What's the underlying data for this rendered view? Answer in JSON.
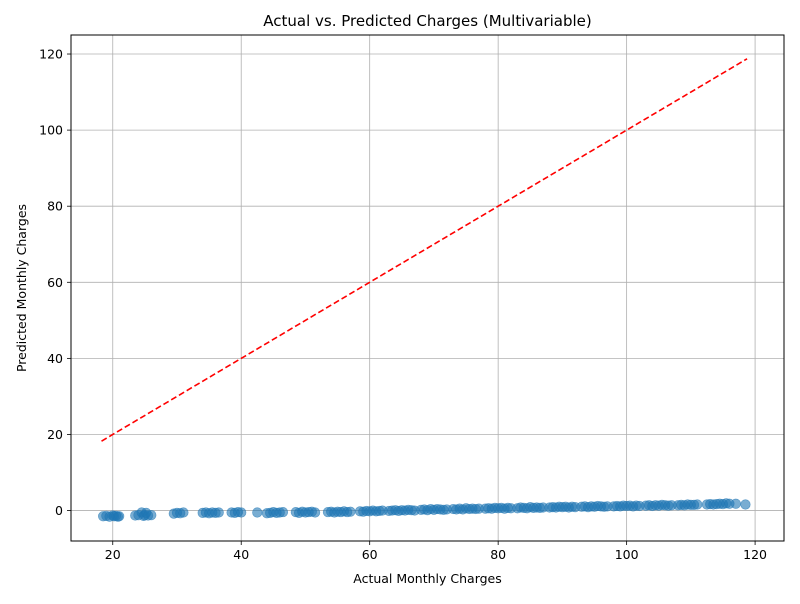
{
  "chart_data": {
    "type": "scatter",
    "title": "Actual vs. Predicted Charges (Multivariable)",
    "xlabel": "Actual Monthly Charges",
    "ylabel": "Predicted Monthly Charges",
    "xlim": [
      13.5,
      124.5
    ],
    "ylim": [
      -8,
      125
    ],
    "x_ticks": [
      20,
      40,
      60,
      80,
      100,
      120
    ],
    "y_ticks": [
      0,
      20,
      40,
      60,
      80,
      100,
      120
    ],
    "grid": true,
    "point_color": "#1f77b4",
    "point_alpha": 0.6,
    "reference_line": {
      "style": "dashed",
      "color": "#ff0000",
      "x": [
        18.25,
        118.75
      ],
      "y": [
        18.25,
        118.75
      ]
    },
    "points": {
      "x": [
        18.5,
        19,
        19.5,
        20,
        20.2,
        20.5,
        20.8,
        21,
        23.5,
        24,
        24.5,
        24.8,
        25,
        25.2,
        25.5,
        26,
        29.5,
        30,
        30.5,
        31,
        34,
        34.5,
        35,
        35.5,
        36,
        36.5,
        38.5,
        39,
        39.5,
        40,
        42.5,
        44,
        44.5,
        45,
        45.5,
        46,
        46.5,
        48.5,
        49,
        49.5,
        50,
        50.5,
        51,
        51.5,
        53.5,
        54,
        54.5,
        55,
        55.5,
        56,
        56.5,
        57,
        58.5,
        59,
        59.5,
        60,
        60.5,
        61,
        61.5,
        62,
        63,
        63.5,
        64,
        64.5,
        65,
        65.5,
        66,
        66.5,
        67,
        68,
        68.5,
        69,
        69.5,
        70,
        70.5,
        71,
        71.5,
        72,
        73,
        73.5,
        74,
        74.5,
        75,
        75.5,
        76,
        76.5,
        77,
        78,
        78.5,
        79,
        79.5,
        80,
        80.5,
        81,
        81.5,
        82,
        83,
        83.5,
        84,
        84.5,
        85,
        85.5,
        86,
        86.5,
        87,
        88,
        88.5,
        89,
        89.5,
        90,
        90.5,
        91,
        91.5,
        92,
        93,
        93.5,
        94,
        94.5,
        95,
        95.5,
        96,
        96.5,
        97,
        98,
        98.5,
        99,
        99.5,
        100,
        100.5,
        101,
        101.5,
        102,
        103,
        103.5,
        104,
        104.5,
        105,
        105.5,
        106,
        106.5,
        107,
        108,
        108.5,
        109,
        109.5,
        110,
        110.5,
        111,
        112.5,
        113,
        113.5,
        114,
        114.5,
        115,
        115.5,
        116,
        117,
        118.5
      ],
      "y": [
        -1.5,
        -1.4,
        -1.6,
        -1.3,
        -1.5,
        -1.4,
        -1.6,
        -1.5,
        -1.3,
        -1.2,
        -0.5,
        -1.4,
        -1.2,
        -0.6,
        -1.3,
        -1.2,
        -0.8,
        -0.6,
        -0.7,
        -0.5,
        -0.6,
        -0.5,
        -0.7,
        -0.5,
        -0.6,
        -0.5,
        -0.5,
        -0.6,
        -0.4,
        -0.5,
        -0.5,
        -0.7,
        -0.6,
        -0.4,
        -0.6,
        -0.5,
        -0.4,
        -0.4,
        -0.6,
        -0.3,
        -0.5,
        -0.4,
        -0.3,
        -0.5,
        -0.4,
        -0.3,
        -0.5,
        -0.3,
        -0.4,
        -0.2,
        -0.4,
        -0.3,
        -0.2,
        -0.3,
        -0.1,
        -0.2,
        0,
        -0.2,
        -0.1,
        0,
        -0.1,
        0,
        0.1,
        -0.1,
        0.1,
        0,
        0.2,
        0.1,
        0,
        0.2,
        0.3,
        0.1,
        0.4,
        0.2,
        0.4,
        0.3,
        0.2,
        0.3,
        0.4,
        0.3,
        0.5,
        0.3,
        0.6,
        0.4,
        0.5,
        0.4,
        0.5,
        0.5,
        0.6,
        0.5,
        0.7,
        0.6,
        0.7,
        0.5,
        0.7,
        0.6,
        0.6,
        0.8,
        0.7,
        0.6,
        0.9,
        0.7,
        0.8,
        0.7,
        0.8,
        0.8,
        0.9,
        0.8,
        1.0,
        0.9,
        1.0,
        0.8,
        1.0,
        0.9,
        1.0,
        1.1,
        0.9,
        1.1,
        1.0,
        1.2,
        1.1,
        1.0,
        1.1,
        1.1,
        1.2,
        1.1,
        1.3,
        1.2,
        1.3,
        1.1,
        1.3,
        1.2,
        1.3,
        1.4,
        1.2,
        1.4,
        1.3,
        1.5,
        1.4,
        1.3,
        1.4,
        1.4,
        1.5,
        1.4,
        1.6,
        1.5,
        1.5,
        1.6,
        1.6,
        1.7,
        1.6,
        1.7,
        1.8,
        1.7,
        1.9,
        1.8,
        1.8,
        1.6
      ]
    }
  }
}
